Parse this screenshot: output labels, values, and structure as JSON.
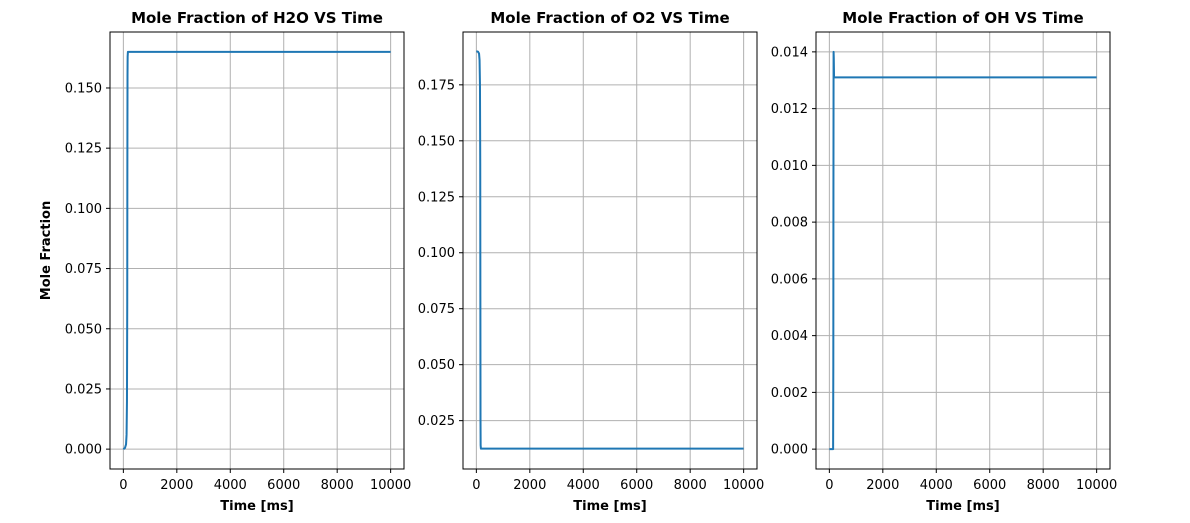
{
  "chart_data": [
    {
      "type": "line",
      "title": "Mole Fraction of H2O VS Time",
      "xlabel": "Time [ms]",
      "ylabel": "Mole Fraction",
      "xlim": [
        -500,
        10500
      ],
      "ylim": [
        -0.00825,
        0.17325
      ],
      "xticks": [
        0,
        2000,
        4000,
        6000,
        8000,
        10000
      ],
      "xtick_labels": [
        "0",
        "2000",
        "4000",
        "6000",
        "8000",
        "10000"
      ],
      "yticks": [
        0.0,
        0.025,
        0.05,
        0.075,
        0.1,
        0.125,
        0.15
      ],
      "ytick_labels": [
        "0.000",
        "0.025",
        "0.050",
        "0.075",
        "0.100",
        "0.125",
        "0.150"
      ],
      "grid": true,
      "series": [
        {
          "color": "#1f77b4",
          "x": [
            0,
            60,
            100,
            120,
            135,
            145,
            150,
            155,
            160,
            170,
            200,
            10000
          ],
          "y": [
            0.0,
            0.0005,
            0.002,
            0.006,
            0.02,
            0.06,
            0.12,
            0.155,
            0.163,
            0.165,
            0.165,
            0.165
          ]
        }
      ]
    },
    {
      "type": "line",
      "title": "Mole Fraction of O2 VS Time",
      "xlabel": "Time [ms]",
      "ylabel": "",
      "xlim": [
        -500,
        10500
      ],
      "ylim": [
        0.0034,
        0.1986
      ],
      "xticks": [
        0,
        2000,
        4000,
        6000,
        8000,
        10000
      ],
      "xtick_labels": [
        "0",
        "2000",
        "4000",
        "6000",
        "8000",
        "10000"
      ],
      "yticks": [
        0.025,
        0.05,
        0.075,
        0.1,
        0.125,
        0.15,
        0.175
      ],
      "ytick_labels": [
        "0.025",
        "0.050",
        "0.075",
        "0.100",
        "0.125",
        "0.150",
        "0.175"
      ],
      "grid": true,
      "series": [
        {
          "color": "#1f77b4",
          "x": [
            0,
            60,
            100,
            120,
            135,
            145,
            150,
            155,
            160,
            170,
            200,
            10000
          ],
          "y": [
            0.19,
            0.1898,
            0.189,
            0.186,
            0.175,
            0.14,
            0.08,
            0.025,
            0.014,
            0.0125,
            0.0125,
            0.0125
          ]
        }
      ]
    },
    {
      "type": "line",
      "title": "Mole Fraction of OH VS Time",
      "xlabel": "Time [ms]",
      "ylabel": "",
      "xlim": [
        -500,
        10500
      ],
      "ylim": [
        -0.0007,
        0.0147
      ],
      "xticks": [
        0,
        2000,
        4000,
        6000,
        8000,
        10000
      ],
      "xtick_labels": [
        "0",
        "2000",
        "4000",
        "6000",
        "8000",
        "10000"
      ],
      "yticks": [
        0.0,
        0.002,
        0.004,
        0.006,
        0.008,
        0.01,
        0.012,
        0.014
      ],
      "ytick_labels": [
        "0.000",
        "0.002",
        "0.004",
        "0.006",
        "0.008",
        "0.010",
        "0.012",
        "0.014"
      ],
      "grid": true,
      "series": [
        {
          "color": "#1f77b4",
          "x": [
            0,
            140,
            148,
            152,
            158,
            165,
            175,
            200,
            10000
          ],
          "y": [
            0.0,
            0.0,
            0.003,
            0.009,
            0.014,
            0.0138,
            0.0131,
            0.0131,
            0.0131
          ]
        }
      ]
    }
  ]
}
